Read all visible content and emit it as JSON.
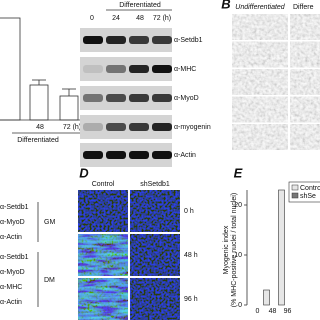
{
  "panel_a": {
    "x_labels": [
      "48",
      "72 (h)"
    ],
    "group_label": "Differentiated"
  },
  "western": {
    "header": "Differentiated",
    "lanes": [
      "0",
      "24",
      "48",
      "72 (h)"
    ],
    "antibodies": [
      "α-Setdb1",
      "α-MHC",
      "α-MyoD",
      "α-myogenin",
      "α-Actin"
    ]
  },
  "panel_b": {
    "label": "B",
    "columns": [
      "Undifferentiated",
      "Differe"
    ]
  },
  "panel_d_blot": {
    "gm": {
      "label": "GM",
      "antibodies": [
        "α-Setdb1",
        "α-MyoD",
        "α-Actin"
      ]
    },
    "dm": {
      "label": "DM",
      "antibodies": [
        "α-Setdb1",
        "α-MyoD",
        "α-MHC",
        "α-Actin"
      ]
    }
  },
  "panel_d": {
    "label": "D",
    "columns": [
      "Control",
      "shSetdb1"
    ],
    "rows": [
      "0 h",
      "48 h",
      "96 h"
    ]
  },
  "chart_data": {
    "type": "bar",
    "panel_label": "E",
    "y_label": [
      "Myogenic index",
      "(% MHC-positive nuclei / total nuclei)"
    ],
    "categories": [
      "0",
      "48",
      "96"
    ],
    "series": [
      {
        "name": "Contro",
        "color": "#e6e6e6",
        "values": [
          0,
          3,
          23
        ]
      },
      {
        "name": "shSe",
        "color": "#777777",
        "values": [
          null,
          null,
          null
        ]
      }
    ],
    "ylim": [
      0,
      23
    ],
    "yticks": [
      0,
      10,
      20
    ]
  }
}
